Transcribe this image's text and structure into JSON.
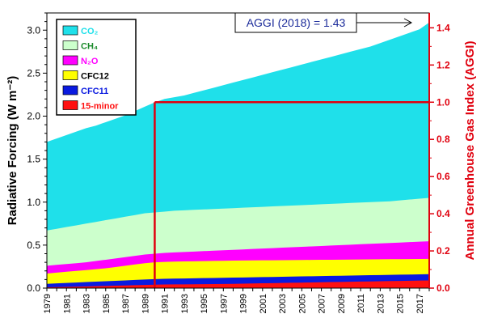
{
  "chart_data": {
    "type": "area",
    "years": [
      1979,
      1980,
      1981,
      1982,
      1983,
      1984,
      1985,
      1986,
      1987,
      1988,
      1989,
      1990,
      1991,
      1992,
      1993,
      1994,
      1995,
      1996,
      1997,
      1998,
      1999,
      2000,
      2001,
      2002,
      2003,
      2004,
      2005,
      2006,
      2007,
      2008,
      2009,
      2010,
      2011,
      2012,
      2013,
      2014,
      2015,
      2016,
      2017,
      2018
    ],
    "x_tick_labels": [
      "1979",
      "1981",
      "1983",
      "1985",
      "1987",
      "1989",
      "1991",
      "1993",
      "1995",
      "1997",
      "1999",
      "2001",
      "2003",
      "2005",
      "2007",
      "2009",
      "2011",
      "2013",
      "2015",
      "2017"
    ],
    "stacked_totals": {
      "15-minor": [
        0.01,
        0.012,
        0.014,
        0.016,
        0.019,
        0.022,
        0.025,
        0.028,
        0.031,
        0.034,
        0.037,
        0.04,
        0.042,
        0.043,
        0.044,
        0.045,
        0.046,
        0.047,
        0.048,
        0.05,
        0.052,
        0.054,
        0.056,
        0.058,
        0.06,
        0.062,
        0.064,
        0.066,
        0.068,
        0.07,
        0.072,
        0.074,
        0.076,
        0.078,
        0.08,
        0.082,
        0.084,
        0.086,
        0.088,
        0.09
      ],
      "CFC11": [
        0.05,
        0.055,
        0.06,
        0.065,
        0.07,
        0.075,
        0.08,
        0.085,
        0.09,
        0.095,
        0.1,
        0.105,
        0.108,
        0.11,
        0.112,
        0.114,
        0.116,
        0.118,
        0.12,
        0.122,
        0.124,
        0.126,
        0.128,
        0.13,
        0.132,
        0.134,
        0.136,
        0.138,
        0.14,
        0.142,
        0.144,
        0.146,
        0.148,
        0.15,
        0.152,
        0.154,
        0.156,
        0.158,
        0.16,
        0.162
      ],
      "CFC12": [
        0.17,
        0.18,
        0.19,
        0.2,
        0.21,
        0.22,
        0.23,
        0.245,
        0.26,
        0.275,
        0.29,
        0.3,
        0.305,
        0.308,
        0.31,
        0.312,
        0.314,
        0.316,
        0.318,
        0.32,
        0.321,
        0.322,
        0.323,
        0.324,
        0.325,
        0.326,
        0.327,
        0.328,
        0.329,
        0.33,
        0.331,
        0.332,
        0.333,
        0.334,
        0.335,
        0.336,
        0.337,
        0.338,
        0.339,
        0.34
      ],
      "N2O": [
        0.26,
        0.27,
        0.28,
        0.29,
        0.3,
        0.315,
        0.33,
        0.345,
        0.36,
        0.375,
        0.39,
        0.4,
        0.41,
        0.415,
        0.42,
        0.425,
        0.43,
        0.435,
        0.44,
        0.445,
        0.45,
        0.455,
        0.46,
        0.465,
        0.47,
        0.475,
        0.48,
        0.485,
        0.49,
        0.495,
        0.5,
        0.505,
        0.51,
        0.515,
        0.52,
        0.525,
        0.53,
        0.535,
        0.54,
        0.545
      ],
      "CH4": [
        0.67,
        0.69,
        0.71,
        0.73,
        0.75,
        0.77,
        0.79,
        0.81,
        0.83,
        0.85,
        0.87,
        0.88,
        0.89,
        0.9,
        0.905,
        0.91,
        0.915,
        0.92,
        0.925,
        0.93,
        0.935,
        0.94,
        0.945,
        0.95,
        0.955,
        0.96,
        0.965,
        0.97,
        0.975,
        0.98,
        0.985,
        0.99,
        0.995,
        1.0,
        1.005,
        1.01,
        1.02,
        1.03,
        1.04,
        1.05
      ],
      "CO2": [
        1.7,
        1.74,
        1.78,
        1.82,
        1.86,
        1.89,
        1.93,
        1.97,
        2.01,
        2.06,
        2.11,
        2.16,
        2.2,
        2.22,
        2.24,
        2.27,
        2.3,
        2.33,
        2.36,
        2.39,
        2.42,
        2.45,
        2.48,
        2.51,
        2.54,
        2.57,
        2.6,
        2.63,
        2.66,
        2.69,
        2.72,
        2.75,
        2.78,
        2.81,
        2.85,
        2.89,
        2.93,
        2.97,
        3.01,
        3.09
      ]
    },
    "series": [
      {
        "name": "CO₂",
        "key": "CO2",
        "color": "#1fe0ea",
        "text_color": "#1fe0ea"
      },
      {
        "name": "CH₄",
        "key": "CH4",
        "color": "#ccffcc",
        "text_color": "#1a8a2a"
      },
      {
        "name": "N₂O",
        "key": "N2O",
        "color": "#ff00ff",
        "text_color": "#ff00ff"
      },
      {
        "name": "CFC12",
        "key": "CFC12",
        "color": "#ffff00",
        "text_color": "#000000"
      },
      {
        "name": "CFC11",
        "key": "CFC11",
        "color": "#0a1ae0",
        "text_color": "#0a1ae0"
      },
      {
        "name": "15-minor",
        "key": "15-minor",
        "color": "#ff1010",
        "text_color": "#ff1010"
      }
    ],
    "ylabel_left": "Radiative Forcing (W m⁻²)",
    "ylabel_right": "Annual Greenhouse Gas Index (AGGI)",
    "ylim_left": [
      0,
      3.2
    ],
    "ylim_right": [
      0,
      1.48
    ],
    "yticks_left": [
      "0.0",
      "0.5",
      "1.0",
      "1.5",
      "2.0",
      "2.5",
      "3.0"
    ],
    "yticks_right": [
      "0.0",
      "0.2",
      "0.4",
      "0.6",
      "0.8",
      "1.0",
      "1.2",
      "1.4"
    ],
    "reference_year": 1990,
    "reference_aggi": 1.0,
    "annotation": "AGGI (2018) = 1.43",
    "grid": false,
    "legend_position": "top-left",
    "colors": {
      "right_axis": "#e0000e",
      "reference_line": "#e0000e",
      "annotation": "#1a2a9a",
      "plot_background": "#ffffff"
    }
  }
}
